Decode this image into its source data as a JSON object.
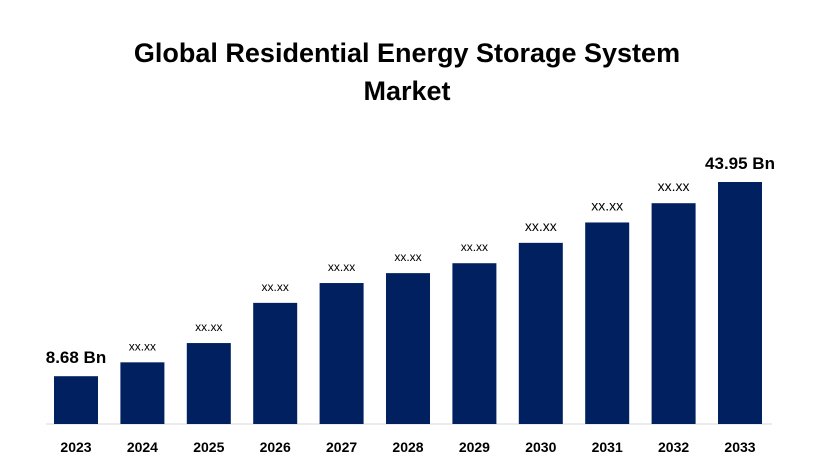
{
  "chart_data": {
    "type": "bar",
    "title_line1": "Global Residential Energy Storage System",
    "title_line2": "Market",
    "categories": [
      "2023",
      "2024",
      "2025",
      "2026",
      "2027",
      "2028",
      "2029",
      "2030",
      "2031",
      "2032",
      "2033"
    ],
    "values": [
      8.68,
      11.2,
      14.7,
      22.0,
      25.6,
      27.4,
      29.2,
      32.9,
      36.6,
      40.1,
      43.95
    ],
    "data_labels": [
      "8.68 Bn",
      "xx.xx",
      "xx.xx",
      "xx.xx",
      "xx.xx",
      "xx.xx",
      "xx.xx",
      "xx.xx",
      "xx.xx",
      "xx.xx",
      "43.95 Bn"
    ],
    "ylim": [
      0,
      43.95
    ],
    "bar_color": "#002060",
    "grid": false,
    "legend": "none"
  }
}
